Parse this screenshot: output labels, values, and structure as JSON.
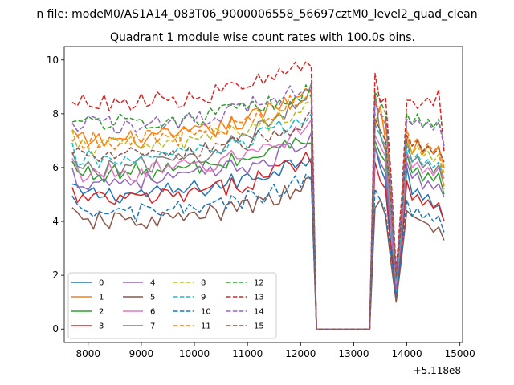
{
  "chart_data": {
    "type": "line",
    "suptitle": "n file: modeM0/AS1A14_083T06_9000006558_56697cztM0_level2_quad_clean",
    "title": "Quadrant 1 module wise count rates with 100.0s bins.",
    "xlabel": "",
    "ylabel": "",
    "x_offset_label": "+5.118e8",
    "xlim": [
      7550,
      15050
    ],
    "ylim": [
      -0.5,
      10.5
    ],
    "xticks": [
      8000,
      9000,
      10000,
      11000,
      12000,
      13000,
      14000,
      15000
    ],
    "yticks": [
      0,
      2,
      4,
      6,
      8,
      10
    ],
    "grid": false,
    "legend": {
      "placement": "lower-left",
      "columns": 4
    },
    "segment_1": {
      "x_start": 7700,
      "x_end": 12200,
      "step": 100
    },
    "gap": {
      "x": [
        12300,
        12400,
        13200,
        13300
      ]
    },
    "segment_2": {
      "x": [
        13400,
        13500,
        13600,
        13700,
        13800,
        13900,
        14000,
        14100,
        14200,
        14300,
        14400,
        14500,
        14600,
        14700
      ]
    },
    "series": [
      {
        "name": "0",
        "color": "#1f77b4",
        "dash": false,
        "base": 5.0,
        "peak": 6.5,
        "seg2": [
          6.8,
          6.0,
          5.5,
          3.2,
          1.5,
          3.0,
          6.0,
          5.0,
          5.2,
          4.8,
          5.0,
          4.5,
          4.6,
          4.0
        ]
      },
      {
        "name": "1",
        "color": "#ff7f0e",
        "dash": false,
        "base": 7.0,
        "peak": 9.0,
        "seg2": [
          7.5,
          8.3,
          7.0,
          5.0,
          2.0,
          4.0,
          7.2,
          6.5,
          7.0,
          6.5,
          6.8,
          6.5,
          6.8,
          6.0
        ]
      },
      {
        "name": "2",
        "color": "#2ca02c",
        "dash": false,
        "base": 5.8,
        "peak": 7.2,
        "seg2": [
          7.0,
          6.5,
          6.2,
          4.0,
          1.6,
          3.5,
          6.5,
          5.8,
          6.0,
          5.5,
          5.8,
          5.5,
          5.8,
          5.0
        ]
      },
      {
        "name": "3",
        "color": "#d62728",
        "dash": false,
        "base": 4.8,
        "peak": 6.5,
        "seg2": [
          6.2,
          5.5,
          5.2,
          3.0,
          1.1,
          3.0,
          5.5,
          4.8,
          5.0,
          4.6,
          4.8,
          4.5,
          4.7,
          4.0
        ]
      },
      {
        "name": "4",
        "color": "#9467bd",
        "dash": false,
        "base": 5.5,
        "peak": 7.0,
        "seg2": [
          6.8,
          6.2,
          5.8,
          3.8,
          1.5,
          3.4,
          6.2,
          5.6,
          5.8,
          5.2,
          5.5,
          5.2,
          5.4,
          4.9
        ]
      },
      {
        "name": "5",
        "color": "#8c564b",
        "dash": false,
        "base": 4.0,
        "peak": 5.4,
        "seg2": [
          4.5,
          4.8,
          4.2,
          2.5,
          1.0,
          2.6,
          4.4,
          4.2,
          4.1,
          4.0,
          3.9,
          3.6,
          3.8,
          3.3
        ]
      },
      {
        "name": "6",
        "color": "#e377c2",
        "dash": false,
        "base": 5.8,
        "peak": 7.6,
        "seg2": [
          7.2,
          6.8,
          6.4,
          4.2,
          1.7,
          3.6,
          6.6,
          6.0,
          6.2,
          5.8,
          6.0,
          5.7,
          6.0,
          5.6
        ]
      },
      {
        "name": "7",
        "color": "#7f7f7f",
        "dash": false,
        "base": 6.0,
        "peak": 9.0,
        "seg2": [
          8.8,
          7.2,
          6.6,
          4.4,
          1.8,
          3.7,
          7.0,
          6.2,
          6.4,
          6.0,
          6.2,
          5.8,
          6.1,
          5.3
        ]
      },
      {
        "name": "8",
        "color": "#bcbd22",
        "dash": true,
        "base": 6.8,
        "peak": 8.4,
        "seg2": [
          8.0,
          7.4,
          7.0,
          4.8,
          1.8,
          3.9,
          7.0,
          6.5,
          6.8,
          6.4,
          6.6,
          6.2,
          6.5,
          5.8
        ]
      },
      {
        "name": "9",
        "color": "#17becf",
        "dash": true,
        "base": 6.3,
        "peak": 8.0,
        "seg2": [
          7.6,
          7.2,
          6.8,
          4.6,
          1.8,
          3.8,
          6.8,
          6.2,
          6.5,
          6.1,
          6.3,
          6.0,
          6.2,
          5.6
        ]
      },
      {
        "name": "10",
        "color": "#1f77b4",
        "dash": true,
        "base": 4.3,
        "peak": 5.6,
        "seg2": [
          5.2,
          4.8,
          4.4,
          2.8,
          1.2,
          2.8,
          4.8,
          4.2,
          4.5,
          4.1,
          4.3,
          4.0,
          4.2,
          3.6
        ]
      },
      {
        "name": "11",
        "color": "#ff7f0e",
        "dash": true,
        "base": 7.0,
        "peak": 8.8,
        "seg2": [
          8.5,
          8.0,
          7.6,
          5.0,
          2.0,
          4.2,
          7.4,
          6.8,
          7.1,
          6.6,
          6.9,
          6.6,
          6.8,
          5.2
        ]
      },
      {
        "name": "12",
        "color": "#2ca02c",
        "dash": true,
        "base": 7.7,
        "peak": 8.8,
        "seg2": [
          8.8,
          8.5,
          8.0,
          5.5,
          2.0,
          4.5,
          8.0,
          7.6,
          8.0,
          7.5,
          7.8,
          7.5,
          7.8,
          6.8
        ]
      },
      {
        "name": "13",
        "color": "#d62728",
        "dash": true,
        "base": 8.4,
        "peak": 10.0,
        "seg2": [
          9.5,
          8.4,
          8.6,
          5.8,
          2.2,
          4.8,
          8.5,
          8.5,
          8.2,
          8.4,
          8.6,
          8.3,
          8.9,
          6.6
        ]
      },
      {
        "name": "14",
        "color": "#9467bd",
        "dash": true,
        "base": 7.6,
        "peak": 9.2,
        "seg2": [
          8.4,
          8.0,
          7.8,
          5.4,
          2.0,
          4.4,
          7.8,
          7.6,
          7.8,
          7.5,
          7.7,
          7.4,
          7.7,
          6.8
        ]
      },
      {
        "name": "15",
        "color": "#8c564b",
        "dash": true,
        "base": 6.4,
        "peak": 7.8,
        "seg2": [
          7.8,
          7.4,
          7.0,
          4.8,
          1.9,
          4.0,
          7.2,
          6.8,
          7.0,
          6.6,
          6.8,
          6.5,
          6.7,
          6.2
        ]
      }
    ]
  }
}
